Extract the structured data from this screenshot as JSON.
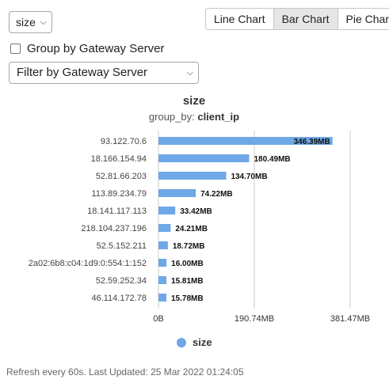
{
  "controls": {
    "metric_select_value": "size",
    "chart_tabs": [
      {
        "label": "Line Chart",
        "active": false
      },
      {
        "label": "Bar Chart",
        "active": true
      },
      {
        "label": "Pie Chart",
        "active": false
      }
    ],
    "group_checkbox_label": "Group by Gateway Server",
    "group_checkbox_checked": false,
    "filter_select_value": "Filter by Gateway Server"
  },
  "colors": {
    "bar": "#6fa8e6",
    "bar_label": "#111111",
    "axis": "#cccccc",
    "text": "#333333"
  },
  "chart_data": {
    "type": "bar",
    "orientation": "horizontal",
    "title": "size",
    "subtitle_prefix": "group_by: ",
    "subtitle_value": "client_ip",
    "categories": [
      "93.122.70.6",
      "18.166.154.94",
      "52.81.66.203",
      "113.89.234.79",
      "18.141.117.113",
      "218.104.237.196",
      "52.5.152.211",
      "2a02:6b8:c04:1d9:0:554:1:152",
      "52.59.252.34",
      "46.114.172.78"
    ],
    "series": [
      {
        "name": "size",
        "values": [
          346.39,
          180.49,
          134.7,
          74.22,
          33.42,
          24.21,
          18.72,
          16.0,
          15.81,
          15.78
        ],
        "labels": [
          "346.39MB",
          "180.49MB",
          "134.70MB",
          "74.22MB",
          "33.42MB",
          "24.21MB",
          "18.72MB",
          "16.00MB",
          "15.81MB",
          "15.78MB"
        ]
      }
    ],
    "xlim": [
      0,
      381.47
    ],
    "xticks": [
      0,
      190.74,
      381.47
    ],
    "xtick_labels": [
      "0B",
      "190.74MB",
      "381.47MB"
    ],
    "unit": "MB",
    "grid": "vertical",
    "legend": "bottom"
  },
  "footer": {
    "text": "Refresh every 60s. Last Updated: 25 Mar 2022 01:24:05"
  }
}
